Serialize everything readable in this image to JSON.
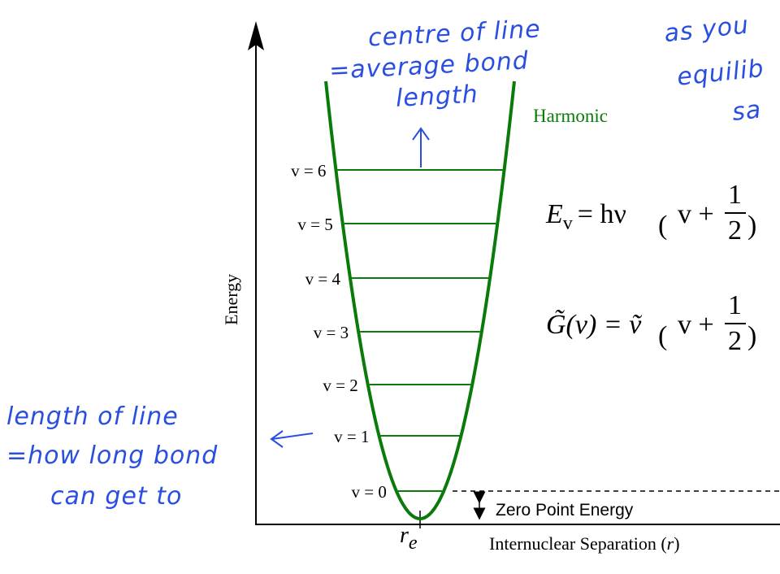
{
  "diagram": {
    "curve_label": "Harmonic",
    "y_axis_label": "Energy",
    "x_axis_label": "Internuclear Separation (",
    "x_axis_var": "r",
    "x_axis_close": ")",
    "equilibrium_label": "r",
    "equilibrium_sub": "e",
    "zero_point_label": "Zero Point Energy",
    "levels": [
      "v = 0",
      "v = 1",
      "v = 2",
      "v = 3",
      "v = 4",
      "v = 5",
      "v = 6"
    ],
    "equation_1": {
      "lhs": "E",
      "sub": "v",
      "rhs": "= hν",
      "inner": "v +",
      "num": "1",
      "den": "2"
    },
    "equation_2": {
      "lhs": "G̃(v) = ṽ",
      "inner": "v +",
      "num": "1",
      "den": "2"
    },
    "colors": {
      "curve": "#0a7a0a",
      "annotation": "#2a4fe0"
    }
  },
  "annotations": {
    "top_note": [
      "centre of line",
      "=average bond",
      "length"
    ],
    "left_note": [
      "length of line",
      "=how long bond",
      "can get to"
    ],
    "right_note": [
      "as you",
      "equilib",
      "sa"
    ]
  }
}
